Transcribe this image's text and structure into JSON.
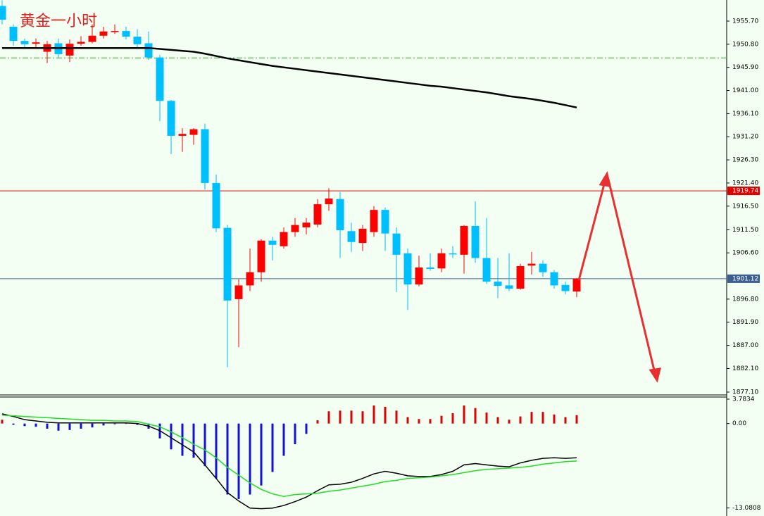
{
  "chart_data": [
    {
      "type": "candlestick",
      "title": "黄金一小时",
      "up_color": "#ff0000",
      "down_color": "#00bfff",
      "open": [
        1958.9,
        1954.5,
        1951.5,
        1950.9,
        1949.2,
        1951.0,
        1948.4,
        1950.9,
        1951.3,
        1952.6,
        1953.4,
        1953.6,
        1952.4,
        1951.0,
        1948.0,
        1938.8,
        1931.4,
        1931.6,
        1932.8,
        1921.4,
        1911.9,
        1896.8,
        1899.7,
        1902.5,
        1909.2,
        1908.0,
        1911.0,
        1912.0,
        1912.6,
        1916.9,
        1918.0,
        1911.2,
        1908.7,
        1911.0,
        1915.7,
        1910.7,
        1906.5,
        1899.9,
        1903.5,
        1903.3,
        1906.5,
        1906.2,
        1912.3,
        1905.5,
        1900.5,
        1899.7,
        1899.0,
        1903.9,
        1904.3,
        1902.5,
        1899.8,
        1898.4
      ],
      "high": [
        1960.1,
        1955.0,
        1952.0,
        1952.0,
        1951.5,
        1952.0,
        1951.8,
        1952.5,
        1955.0,
        1954.5,
        1955.0,
        1954.5,
        1954.0,
        1953.5,
        1948.5,
        1939.0,
        1933.0,
        1933.0,
        1934.0,
        1923.2,
        1912.5,
        1901.0,
        1907.5,
        1909.5,
        1910.0,
        1912.0,
        1914.0,
        1914.0,
        1918.0,
        1920.3,
        1919.5,
        1913.0,
        1912.5,
        1916.5,
        1916.2,
        1912.0,
        1907.5,
        1906.0,
        1906.5,
        1907.5,
        1908.0,
        1912.5,
        1917.5,
        1914.0,
        1905.5,
        1906.5,
        1904.3,
        1906.8,
        1905.0,
        1903.0,
        1900.5,
        1901.3
      ],
      "low": [
        1955.0,
        1950.5,
        1950.0,
        1950.0,
        1946.8,
        1948.0,
        1947.0,
        1950.5,
        1951.0,
        1952.0,
        1953.0,
        1951.8,
        1950.0,
        1947.5,
        1934.5,
        1927.5,
        1928.0,
        1929.5,
        1920.0,
        1911.0,
        1882.4,
        1886.6,
        1898.5,
        1900.5,
        1905.0,
        1907.5,
        1910.0,
        1910.5,
        1912.0,
        1915.5,
        1905.5,
        1906.8,
        1907.0,
        1910.0,
        1907.0,
        1898.3,
        1894.5,
        1899.5,
        1902.8,
        1902.5,
        1905.5,
        1902.2,
        1904.5,
        1900.0,
        1897.0,
        1898.5,
        1898.8,
        1902.0,
        1901.5,
        1899.0,
        1897.8,
        1897.2
      ],
      "close": [
        1956.0,
        1951.5,
        1950.8,
        1951.2,
        1950.8,
        1948.7,
        1950.9,
        1951.3,
        1952.6,
        1953.5,
        1953.6,
        1952.4,
        1950.8,
        1948.0,
        1938.8,
        1931.4,
        1931.8,
        1932.8,
        1921.4,
        1911.8,
        1896.5,
        1899.7,
        1902.5,
        1909.2,
        1908.3,
        1911.0,
        1912.5,
        1913.0,
        1916.9,
        1918.1,
        1911.4,
        1908.9,
        1911.7,
        1915.7,
        1910.7,
        1906.2,
        1899.9,
        1903.5,
        1903.2,
        1906.5,
        1906.3,
        1912.3,
        1905.5,
        1900.5,
        1899.6,
        1899.0,
        1903.8,
        1904.3,
        1902.5,
        1899.7,
        1898.5,
        1901.12
      ],
      "overlays": [
        {
          "color": "#000000",
          "values": [
            1950.0,
            1950.0,
            1950.0,
            1950.0,
            1950.0,
            1950.0,
            1950.0,
            1950.0,
            1950.0,
            1950.0,
            1950.0,
            1950.0,
            1950.0,
            1950.0,
            1949.8,
            1949.6,
            1949.4,
            1949.2,
            1948.8,
            1948.3,
            1947.8,
            1947.4,
            1947.0,
            1946.6,
            1946.2,
            1945.9,
            1945.6,
            1945.3,
            1945.0,
            1944.7,
            1944.4,
            1944.1,
            1943.8,
            1943.5,
            1943.2,
            1942.9,
            1942.6,
            1942.3,
            1942.0,
            1941.8,
            1941.5,
            1941.2,
            1940.9,
            1940.6,
            1940.2,
            1939.8,
            1939.5,
            1939.2,
            1938.8,
            1938.4,
            1937.9,
            1937.4
          ]
        }
      ],
      "hlines": [
        {
          "value": 1919.74,
          "color": "#e00000",
          "label": "1919.74"
        },
        {
          "value": 1901.12,
          "color": "#3b5f8f",
          "label": "1901.12"
        },
        {
          "value": 1947.9,
          "color": "#22aa22",
          "dash": true
        }
      ],
      "ylim": [
        1876.5,
        1960.17
      ],
      "yticks": [
        {
          "value": 1955.7,
          "label": "1955.70"
        },
        {
          "value": 1950.8,
          "label": "1950.80"
        },
        {
          "value": 1945.9,
          "label": "1945.90"
        },
        {
          "value": 1941.0,
          "label": "1941.00"
        },
        {
          "value": 1936.1,
          "label": "1936.10"
        },
        {
          "value": 1931.2,
          "label": "1931.20"
        },
        {
          "value": 1926.3,
          "label": "1926.30"
        },
        {
          "value": 1921.4,
          "label": "1921.40"
        },
        {
          "value": 1916.5,
          "label": "1916.50"
        },
        {
          "value": 1911.5,
          "label": "1911.50"
        },
        {
          "value": 1906.6,
          "label": "1906.60"
        },
        {
          "value": 1896.8,
          "label": "1896.80"
        },
        {
          "value": 1891.9,
          "label": "1891.90"
        },
        {
          "value": 1887.0,
          "label": "1887.00"
        },
        {
          "value": 1882.1,
          "label": "1882.10"
        },
        {
          "value": 1877.1,
          "label": "1877.10"
        }
      ]
    },
    {
      "type": "macd",
      "pos_color": "#e00000",
      "neg_color": "#1010e0",
      "values": [
        0.6,
        -0.2,
        -0.4,
        -0.5,
        -0.8,
        -1.1,
        -1.0,
        -0.8,
        -0.6,
        -0.3,
        -0.1,
        0,
        -0.2,
        -0.8,
        -2.3,
        -4.0,
        -5.0,
        -5.3,
        -6.6,
        -8.5,
        -11.0,
        -11.7,
        -11.0,
        -9.6,
        -7.5,
        -5.0,
        -3.2,
        -1.6,
        0.5,
        1.9,
        2.0,
        2.0,
        1.9,
        2.8,
        2.6,
        2.0,
        1.0,
        0.7,
        0.7,
        1.2,
        1.6,
        2.8,
        2.4,
        1.7,
        1.0,
        0.6,
        1.1,
        1.8,
        1.8,
        1.4,
        1.0,
        1.3
      ],
      "series": [
        {
          "color": "#000000",
          "values": [
            1.5,
            1.1,
            0.6,
            0.4,
            0.2,
            0.1,
            0.1,
            0.1,
            0.1,
            0.1,
            0.1,
            0.1,
            0,
            -0.4,
            -1.1,
            -2.2,
            -3.3,
            -4.4,
            -6.4,
            -8.5,
            -10.7,
            -12.0,
            -13.1,
            -13.2,
            -13.1,
            -12.7,
            -12.1,
            -11.4,
            -10.4,
            -9.5,
            -9.4,
            -9.1,
            -8.5,
            -7.8,
            -7.4,
            -7.7,
            -8.1,
            -8.2,
            -8.2,
            -7.9,
            -7.4,
            -6.4,
            -6.2,
            -6.4,
            -6.6,
            -6.7,
            -6.1,
            -5.7,
            -5.4,
            -5.3,
            -5.4,
            -5.3
          ]
        },
        {
          "color": "#22dd22",
          "values": [
            1.3,
            1.2,
            1.1,
            1.0,
            0.9,
            0.8,
            0.7,
            0.6,
            0.5,
            0.5,
            0.4,
            0.4,
            0.3,
            -0.1,
            -0.5,
            -1.3,
            -2.2,
            -3.2,
            -4.1,
            -5.3,
            -6.8,
            -8.0,
            -9.2,
            -10.2,
            -10.9,
            -11.3,
            -11.0,
            -10.9,
            -10.8,
            -10.5,
            -10.3,
            -10.0,
            -9.7,
            -9.4,
            -9.0,
            -8.8,
            -8.5,
            -8.4,
            -8.3,
            -8.1,
            -7.9,
            -7.6,
            -7.3,
            -7.1,
            -7.0,
            -6.9,
            -6.8,
            -6.6,
            -6.3,
            -6.1,
            -5.9,
            -5.8
          ]
        }
      ],
      "ylim": [
        -14.0,
        4.0
      ],
      "yticks": [
        3.7834,
        {
          "value": 0,
          "label": "0.00"
        },
        -13.0808
      ]
    }
  ]
}
